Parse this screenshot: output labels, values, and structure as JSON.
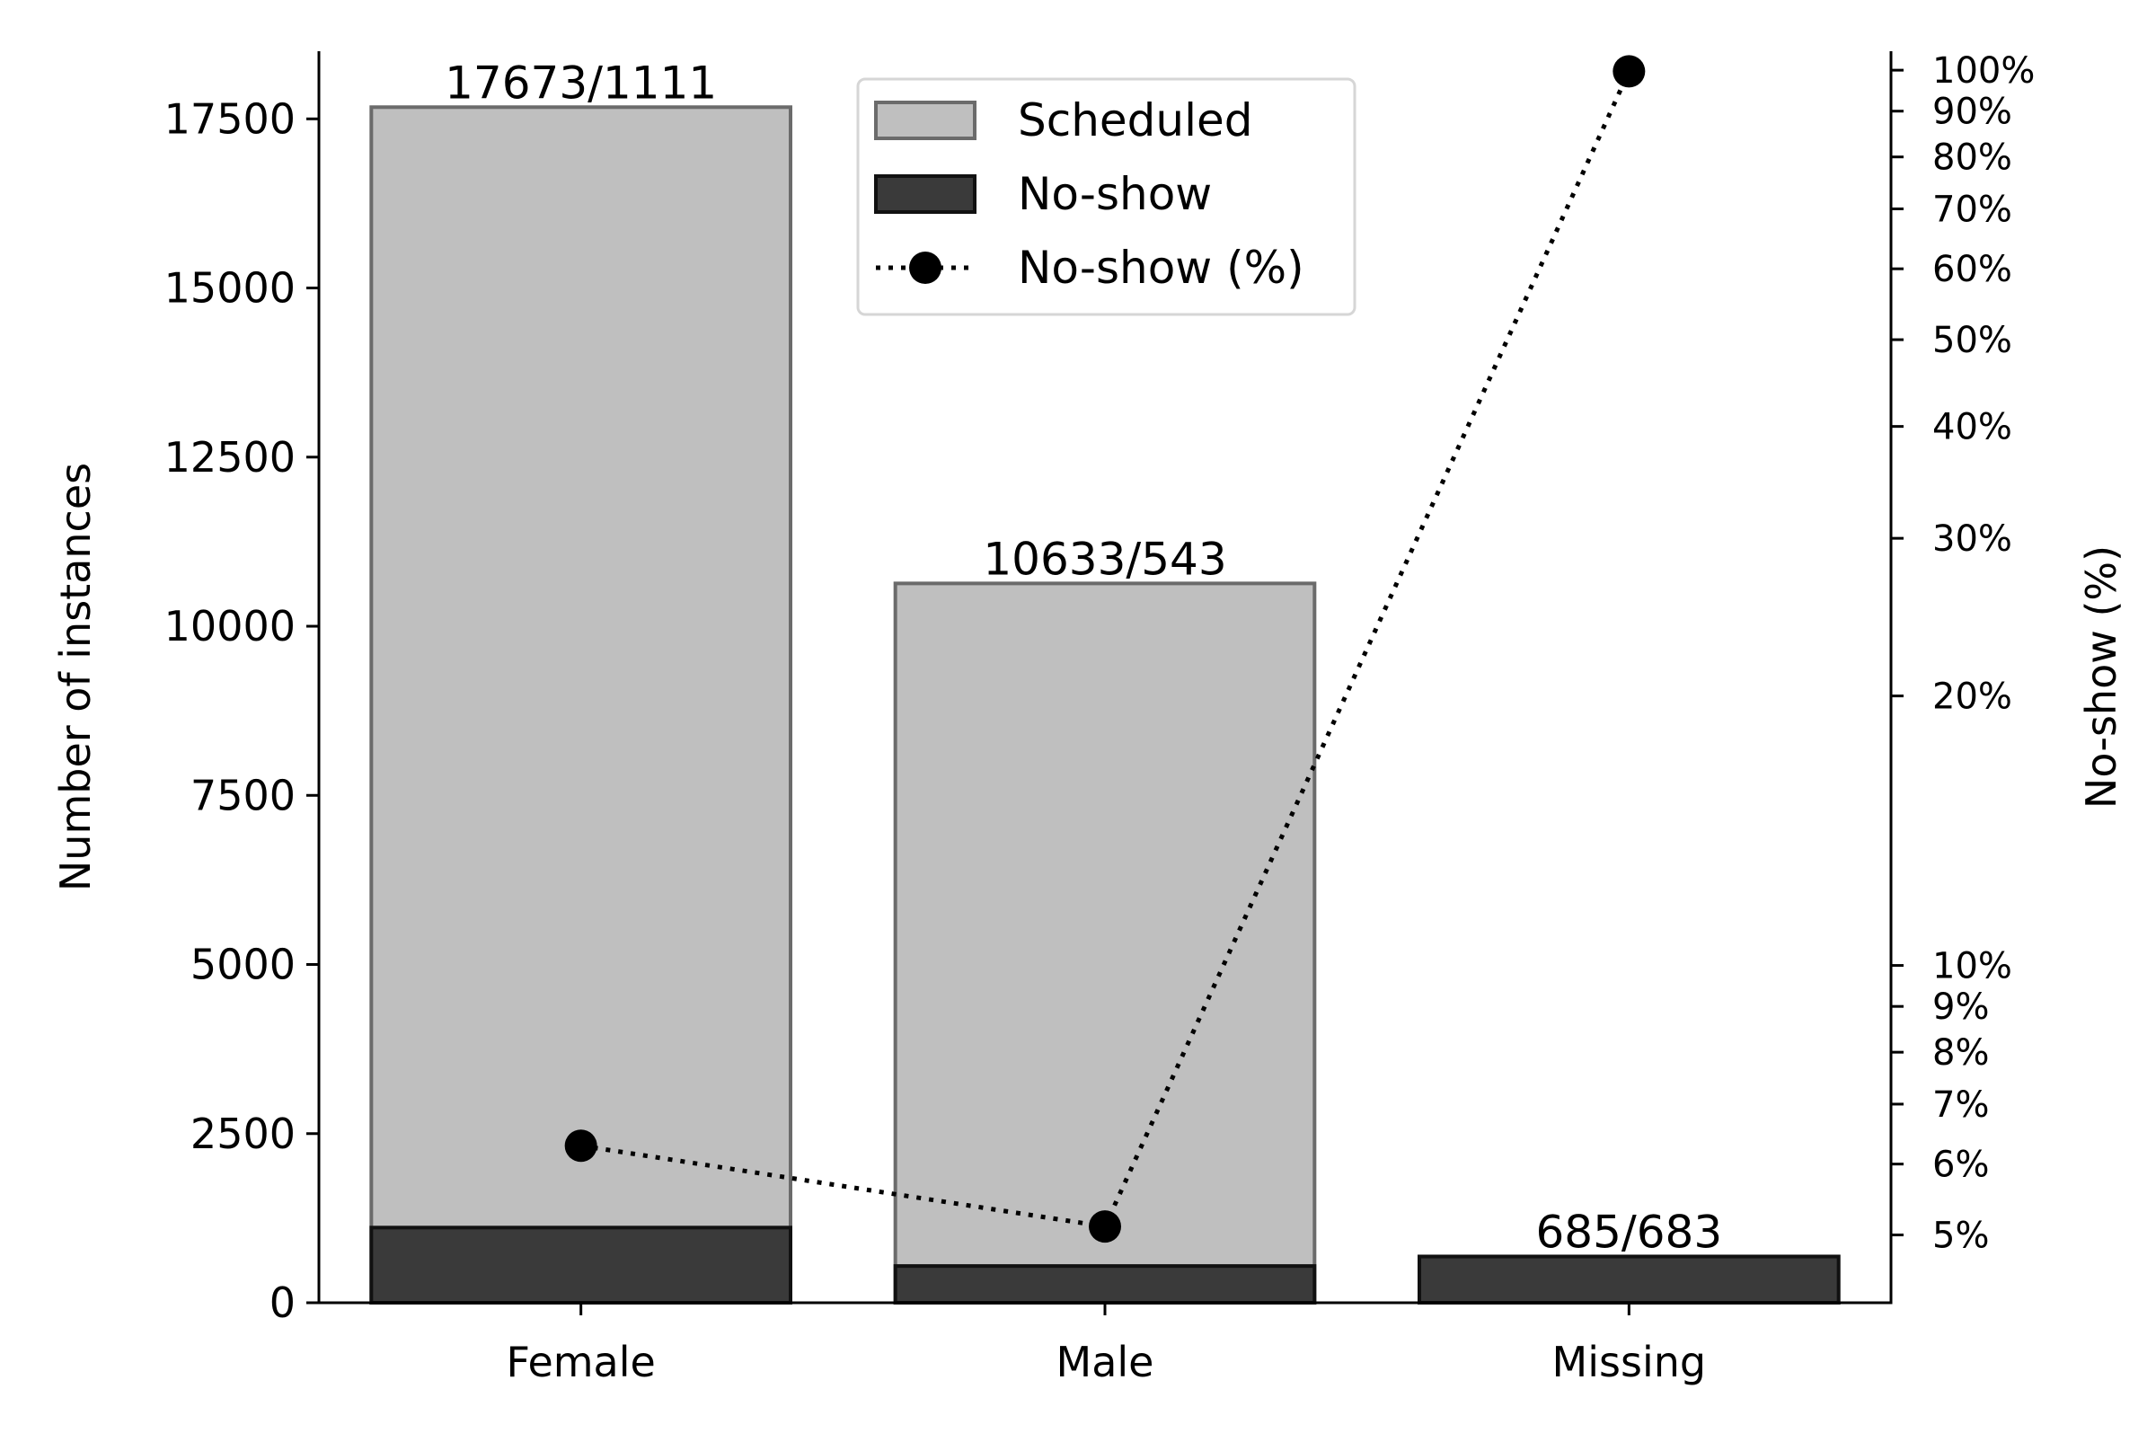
{
  "chart_data": {
    "type": "bar",
    "categories": [
      "Female",
      "Male",
      "Missing"
    ],
    "series": [
      {
        "name": "Scheduled",
        "values": [
          17673,
          10633,
          685
        ],
        "color": "#bfbfbf",
        "edge": "#6b6b6b"
      },
      {
        "name": "No-show",
        "values": [
          1111,
          543,
          683
        ],
        "color": "#3a3a3a",
        "edge": "#111111"
      }
    ],
    "line_series": {
      "name": "No-show (%)",
      "values": [
        6.29,
        5.11,
        99.71
      ],
      "style": "dotted",
      "marker": "circle",
      "color": "#000000"
    },
    "bar_labels": [
      "17673/1111",
      "10633/543",
      "685/683"
    ],
    "ylabel": "Number of instances",
    "ylim": [
      0,
      18500
    ],
    "yticks": [
      0,
      2500,
      5000,
      7500,
      10000,
      12500,
      15000,
      17500
    ],
    "ytick_labels": [
      "0",
      "2500",
      "5000",
      "7500",
      "10000",
      "12500",
      "15000",
      "17500"
    ],
    "y2label": "No-show (%)",
    "y2scale": "log",
    "y2lim": [
      4.2,
      105
    ],
    "y2ticks": [
      5,
      6,
      7,
      8,
      9,
      10,
      20,
      30,
      40,
      50,
      60,
      70,
      80,
      90,
      100
    ],
    "y2tick_labels": [
      "5%",
      "6%",
      "7%",
      "8%",
      "9%",
      "10%",
      "20%",
      "30%",
      "40%",
      "50%",
      "60%",
      "70%",
      "80%",
      "90%",
      "100%"
    ],
    "legend": {
      "placement": "upper-center",
      "entries": [
        "Scheduled",
        "No-show",
        "No-show (%)"
      ]
    },
    "grid": false
  }
}
